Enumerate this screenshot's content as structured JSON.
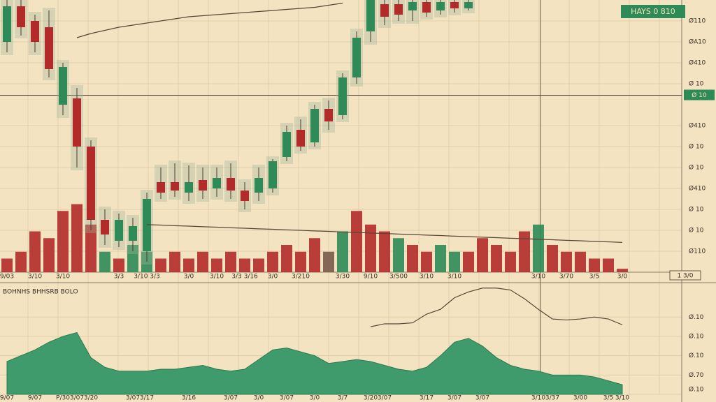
{
  "chart_data": [
    {
      "type": "candlestick",
      "symbol": "HAYS 0 810",
      "categories": [
        "9/03",
        null,
        "3/10",
        null,
        "3/10",
        null,
        null,
        null,
        "3/3",
        null,
        "3/10 3/3",
        null,
        null,
        "3/0",
        null,
        "3/10",
        null,
        "3/3 3/16",
        null,
        "3/0",
        null,
        "3/210",
        null,
        null,
        "3/30",
        null,
        "9/10",
        null,
        "3/500",
        null,
        "3/10",
        null,
        "3/10",
        null,
        null,
        null,
        null,
        null,
        "3/10",
        null,
        "3/70",
        null,
        "3/5",
        null,
        "3/0"
      ],
      "open": [
        11.0,
        12.7,
        12.0,
        11.7,
        8.0,
        8.3,
        6.0,
        2.5,
        1.5,
        1.5,
        1.0,
        4.3,
        4.3,
        3.8,
        4.4,
        4.0,
        4.5,
        3.9,
        3.8,
        4.0,
        5.5,
        6.8,
        6.2,
        7.8,
        7.5,
        9.3,
        11.5,
        12.8,
        12.8,
        12.5,
        12.9,
        12.5,
        12.9,
        12.6,
        null,
        null,
        null,
        null,
        null,
        null,
        null,
        null,
        null,
        null,
        null
      ],
      "high": [
        13.0,
        13.0,
        12.3,
        12.5,
        10.0,
        8.8,
        6.3,
        3.0,
        2.8,
        2.6,
        3.8,
        5.0,
        5.2,
        5.1,
        5.0,
        5.0,
        5.2,
        4.3,
        5.0,
        5.4,
        7.0,
        7.3,
        8.0,
        8.2,
        9.5,
        11.5,
        13.0,
        13.0,
        13.0,
        13.0,
        13.0,
        13.0,
        13.0,
        13.0,
        null,
        null,
        null,
        null,
        null,
        null,
        null,
        null,
        null,
        null,
        null
      ],
      "low": [
        10.5,
        11.3,
        10.5,
        9.3,
        7.5,
        5.0,
        2.0,
        1.3,
        1.2,
        1.0,
        0.5,
        3.5,
        3.6,
        3.4,
        3.5,
        3.6,
        3.5,
        3.0,
        3.4,
        3.8,
        5.3,
        5.8,
        6.0,
        6.8,
        7.3,
        9.0,
        11.0,
        11.8,
        12.0,
        12.0,
        12.2,
        12.3,
        12.4,
        12.5,
        null,
        null,
        null,
        null,
        null,
        null,
        null,
        null,
        null,
        null,
        null
      ],
      "close": [
        12.7,
        11.7,
        11.0,
        9.7,
        9.8,
        6.0,
        2.5,
        1.8,
        2.5,
        2.2,
        3.5,
        3.8,
        3.9,
        4.3,
        3.9,
        4.5,
        3.9,
        3.4,
        4.5,
        5.3,
        6.7,
        6.0,
        7.8,
        7.2,
        9.3,
        11.2,
        13.0,
        12.2,
        12.3,
        12.9,
        12.4,
        12.9,
        12.6,
        12.9,
        null,
        null,
        null,
        null,
        null,
        null,
        null,
        null,
        null,
        null,
        null
      ],
      "up_color": "#2e8b57",
      "down_color": "#b22a2a",
      "ylim": [
        0,
        13
      ],
      "yticks": [
        {
          "value": 12,
          "label": "Ø110"
        },
        {
          "value": 11,
          "label": "ØA10"
        },
        {
          "value": 10,
          "label": "Ø410"
        },
        {
          "value": 9,
          "label": "Ø 10"
        },
        {
          "value": 7,
          "label": "Ø410"
        },
        {
          "value": 6,
          "label": "Ø 10"
        },
        {
          "value": 5,
          "label": "Ø 10"
        },
        {
          "value": 4,
          "label": "Ø410"
        },
        {
          "value": 3,
          "label": "Ø 10"
        },
        {
          "value": 2,
          "label": "Ø 10"
        },
        {
          "value": 1,
          "label": "Ø110"
        }
      ],
      "price_line": {
        "value": 8.45,
        "label": "Ø 10",
        "color": "#2e8b57"
      },
      "y2lim": [
        0,
        40
      ],
      "volume": {
        "axis": "y2",
        "values": [
          2,
          3,
          6,
          5,
          9,
          10,
          7,
          3,
          2,
          4,
          3,
          2,
          3,
          2,
          3,
          2,
          3,
          2,
          2,
          3,
          4,
          3,
          5,
          3,
          6,
          9,
          7,
          6,
          5,
          4,
          3,
          4,
          3,
          3,
          5,
          4,
          3,
          6,
          7,
          4,
          3,
          3,
          2,
          2,
          0.5
        ],
        "colors": [
          "#b22a2a",
          "#b22a2a",
          "#b22a2a",
          "#b22a2a",
          "#b22a2a",
          "#b22a2a",
          "#b22a2a",
          "#2e8b57",
          "#b22a2a",
          "#2e8b57",
          "#2e8b57",
          "#b22a2a",
          "#b22a2a",
          "#b22a2a",
          "#b22a2a",
          "#b22a2a",
          "#b22a2a",
          "#b22a2a",
          "#b22a2a",
          "#b22a2a",
          "#b22a2a",
          "#b22a2a",
          "#b22a2a",
          "#7a5a4a",
          "#2e8b57",
          "#b22a2a",
          "#b22a2a",
          "#b22a2a",
          "#2e8b57",
          "#b22a2a",
          "#b22a2a",
          "#2e8b57",
          "#2e8b57",
          "#b22a2a",
          "#b22a2a",
          "#b22a2a",
          "#b22a2a",
          "#b22a2a",
          "#2e8b57",
          "#b22a2a",
          "#b22a2a",
          "#b22a2a",
          "#b22a2a",
          "#b22a2a",
          "#b22a2a"
        ]
      },
      "lines": [
        {
          "color": "#5a4636",
          "values": [
            null,
            null,
            null,
            null,
            null,
            11.2,
            11.4,
            11.55,
            11.7,
            11.8,
            11.9,
            12.0,
            12.1,
            12.2,
            12.25,
            12.3,
            12.35,
            12.4,
            12.45,
            12.5,
            12.55,
            12.6,
            12.65,
            12.75,
            12.85,
            null,
            null,
            null,
            null,
            null,
            null,
            null,
            null,
            null,
            null,
            null,
            null,
            null,
            null,
            null,
            null,
            null,
            null,
            null,
            null
          ]
        },
        {
          "color": "#5a4636",
          "values": [
            null,
            null,
            null,
            null,
            null,
            null,
            null,
            null,
            null,
            null,
            2.27,
            2.25,
            2.22,
            2.2,
            2.17,
            2.15,
            2.12,
            2.1,
            2.07,
            2.05,
            2.02,
            2.0,
            1.97,
            1.95,
            1.92,
            1.9,
            1.87,
            1.85,
            1.82,
            1.8,
            1.77,
            1.75,
            1.72,
            1.7,
            1.67,
            1.65,
            1.62,
            1.6,
            1.57,
            1.55,
            1.52,
            1.5,
            1.47,
            1.45,
            1.42
          ]
        }
      ],
      "cursor_label": "1 3/0"
    },
    {
      "type": "area",
      "title": "BOHNHS BHHSRB BOLO",
      "categories": [
        "9/07",
        null,
        "9/07",
        null,
        "P/30",
        "3/07",
        "3/20",
        null,
        null,
        "3/07",
        "3/17",
        null,
        null,
        "3/16",
        null,
        null,
        "3/07",
        null,
        "3/0",
        null,
        "3/07",
        null,
        "3/0",
        null,
        "3/7",
        null,
        "3/20",
        "3/07",
        null,
        null,
        "3/17",
        null,
        "3/07",
        null,
        "3/07",
        null,
        null,
        null,
        "3/10",
        "3/37",
        null,
        "3/00",
        null,
        "3/5",
        "3/10"
      ],
      "values": [
        1.7,
        2.0,
        2.3,
        2.7,
        3.0,
        3.2,
        1.9,
        1.4,
        1.2,
        1.2,
        1.2,
        1.3,
        1.3,
        1.4,
        1.5,
        1.3,
        1.2,
        1.3,
        1.8,
        2.3,
        2.4,
        2.2,
        2.0,
        1.6,
        1.7,
        1.8,
        1.7,
        1.5,
        1.3,
        1.2,
        1.4,
        2.0,
        2.7,
        2.9,
        2.5,
        1.9,
        1.5,
        1.3,
        1.2,
        1.0,
        1.0,
        1.0,
        0.9,
        0.7,
        0.5
      ],
      "color": "#3f9a6c",
      "line": {
        "color": "#5a4636",
        "values": [
          null,
          null,
          null,
          null,
          null,
          null,
          null,
          null,
          null,
          null,
          null,
          null,
          null,
          null,
          null,
          null,
          null,
          null,
          null,
          null,
          null,
          null,
          null,
          null,
          null,
          null,
          3.5,
          3.65,
          3.65,
          3.7,
          4.15,
          4.4,
          5.0,
          5.3,
          5.5,
          5.5,
          5.4,
          4.95,
          4.4,
          3.9,
          3.85,
          3.9,
          4.0,
          3.9,
          3.6
        ]
      },
      "ylim": [
        0,
        5.6
      ],
      "yticks": [
        {
          "value": 4,
          "label": "Ø.10"
        },
        {
          "value": 3,
          "label": "Ø.10"
        },
        {
          "value": 2,
          "label": "Ø.10"
        },
        {
          "value": 1,
          "label": "Ø.70"
        },
        {
          "value": 0,
          "label": "Ø.10"
        }
      ]
    }
  ]
}
